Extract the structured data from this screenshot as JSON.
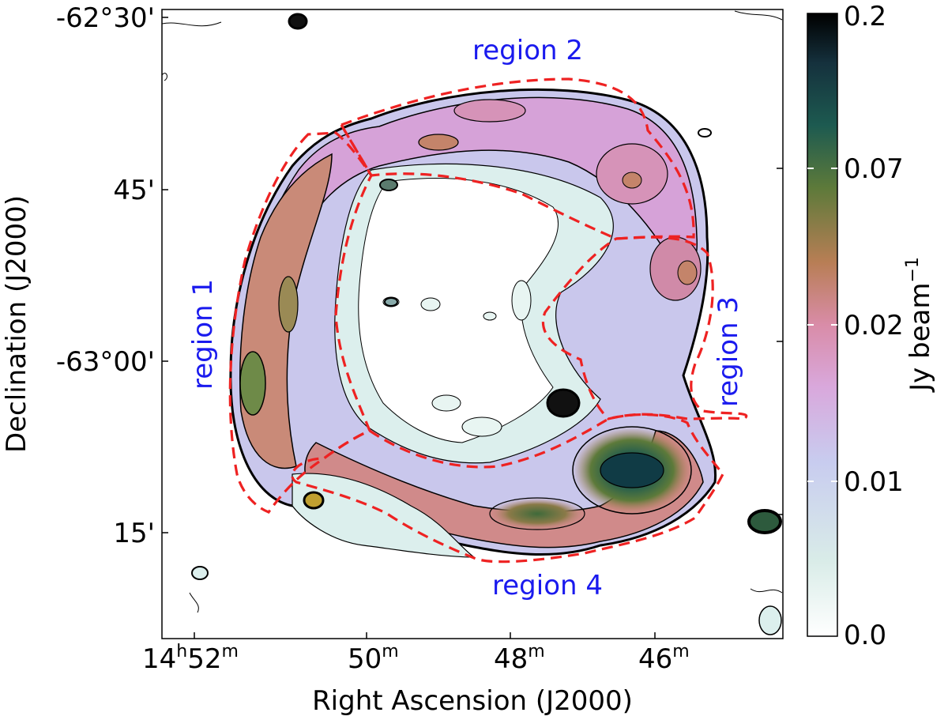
{
  "figure": {
    "xlabel": "Right Ascension (J2000)",
    "ylabel": "Declination (J2000)",
    "x_ticks": [
      {
        "h": "14",
        "m": "52",
        "full": true
      },
      {
        "m": "50"
      },
      {
        "m": "48"
      },
      {
        "m": "46"
      }
    ],
    "y_ticks": [
      "-62°30'",
      "45'",
      "-63°00'",
      "15'"
    ],
    "regions": [
      "region 1",
      "region 2",
      "region 3",
      "region 4"
    ],
    "colorbar": {
      "label": "Jy beam",
      "label_sup": "−1",
      "ticks": [
        "0.0",
        "0.01",
        "0.02",
        "0.07",
        "0.2"
      ],
      "colormap": [
        "#ffffff",
        "#d9ece8",
        "#c8ccef",
        "#d9a8dc",
        "#d98ca8",
        "#b87e55",
        "#5d7a3a",
        "#1d5a50",
        "#15313d",
        "#000000"
      ]
    },
    "region_outline_color": "#ee2222",
    "region_label_color": "#1a1aee"
  }
}
